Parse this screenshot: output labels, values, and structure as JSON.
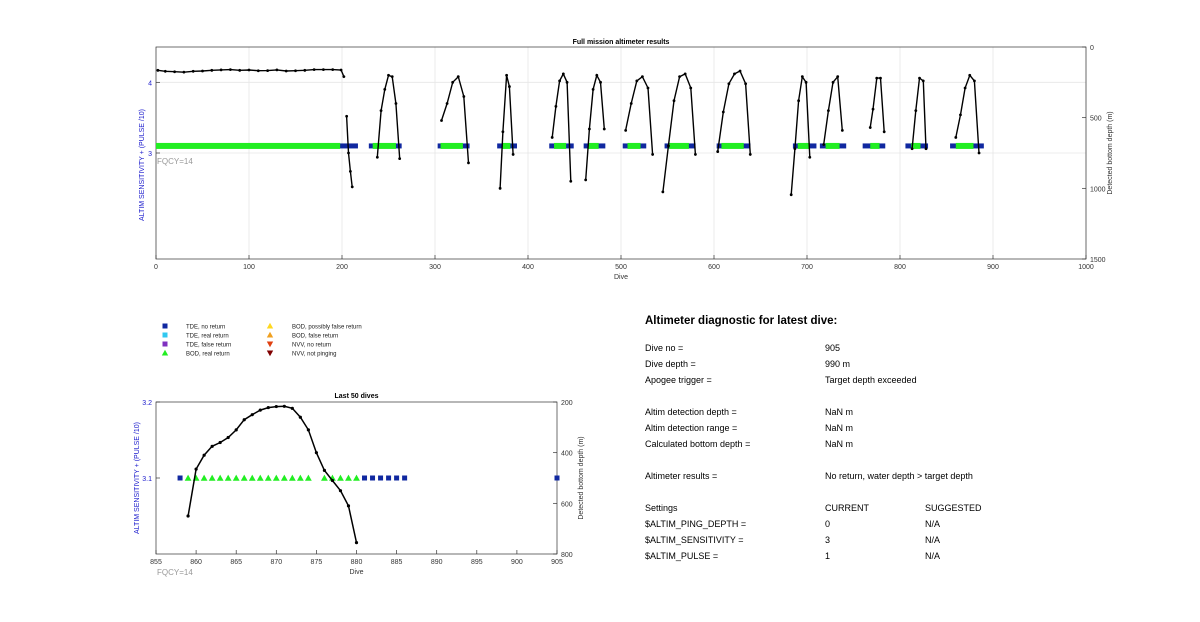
{
  "chart_data": [
    {
      "type": "line",
      "title": "Full mission altimeter results",
      "xlabel": "Dive",
      "ylabel": "ALTIM SENSITIVITY + (PULSE /10)",
      "y2label": "Detected bottom depth (m)",
      "xlim": [
        0,
        1000
      ],
      "ylim": [
        1.5,
        4.5
      ],
      "y2lim": [
        0,
        1500
      ],
      "y2_reversed": true,
      "xticks": [
        "0",
        "100",
        "200",
        "300",
        "400",
        "500",
        "600",
        "700",
        "800",
        "900",
        "1000"
      ],
      "yticks": [
        "3",
        "4"
      ],
      "y2ticks": [
        "0",
        "500",
        "1000",
        "1500"
      ],
      "annotation": "FQCY=14",
      "grid": true,
      "series": [
        {
          "kind": "depth-line",
          "color": "#000000",
          "segments": [
            {
              "x": [
                2,
                10,
                20,
                30,
                40,
                50,
                60,
                70,
                80,
                90,
                100,
                110,
                120,
                130,
                140,
                150,
                160,
                170,
                180,
                190,
                199,
                202
              ],
              "y": [
                165,
                172,
                175,
                178,
                172,
                170,
                165,
                162,
                160,
                165,
                163,
                168,
                167,
                162,
                170,
                168,
                165,
                160,
                160,
                160,
                163,
                210
              ]
            },
            {
              "x": [
                205,
                207,
                209,
                211
              ],
              "y": [
                490,
                750,
                880,
                990
              ]
            },
            {
              "x": [
                238,
                242,
                246,
                250,
                254,
                258,
                262
              ],
              "y": [
                780,
                450,
                300,
                200,
                210,
                400,
                790
              ]
            },
            {
              "x": [
                307,
                313,
                319,
                325,
                331,
                336
              ],
              "y": [
                520,
                400,
                250,
                210,
                350,
                820
              ]
            },
            {
              "x": [
                370,
                373,
                377,
                380,
                384
              ],
              "y": [
                1000,
                600,
                200,
                280,
                760
              ]
            },
            {
              "x": [
                426,
                430,
                434,
                438,
                442,
                446
              ],
              "y": [
                640,
                420,
                240,
                190,
                250,
                950
              ]
            },
            {
              "x": [
                462,
                466,
                470,
                474,
                478,
                482
              ],
              "y": [
                940,
                580,
                300,
                200,
                250,
                580
              ]
            },
            {
              "x": [
                505,
                511,
                517,
                523,
                529,
                534
              ],
              "y": [
                590,
                400,
                240,
                210,
                290,
                760
              ]
            },
            {
              "x": [
                545,
                551,
                557,
                563,
                569,
                575,
                580
              ],
              "y": [
                1025,
                700,
                380,
                210,
                190,
                290,
                760
              ]
            },
            {
              "x": [
                604,
                610,
                616,
                622,
                628,
                634,
                639
              ],
              "y": [
                740,
                460,
                260,
                190,
                170,
                260,
                760
              ]
            },
            {
              "x": [
                683,
                687,
                691,
                695,
                699,
                703
              ],
              "y": [
                1045,
                720,
                380,
                210,
                250,
                780
              ]
            },
            {
              "x": [
                718,
                723,
                728,
                733,
                738
              ],
              "y": [
                690,
                450,
                250,
                210,
                590
              ]
            },
            {
              "x": [
                768,
                771,
                775,
                779,
                783
              ],
              "y": [
                570,
                440,
                220,
                220,
                600
              ]
            },
            {
              "x": [
                813,
                817,
                821,
                825,
                828
              ],
              "y": [
                720,
                450,
                220,
                240,
                720
              ]
            },
            {
              "x": [
                860,
                865,
                870,
                875,
                880,
                885
              ],
              "y": [
                640,
                480,
                290,
                200,
                240,
                750
              ]
            }
          ]
        },
        {
          "kind": "bod-real-return-runs",
          "color": "#22ee22",
          "y": 3.1,
          "runs": [
            [
              0,
              198
            ],
            [
              233,
              258
            ],
            [
              306,
              330
            ],
            [
              372,
              381
            ],
            [
              428,
              441
            ],
            [
              465,
              476
            ],
            [
              507,
              521
            ],
            [
              552,
              573
            ],
            [
              608,
              632
            ],
            [
              690,
              703
            ],
            [
              720,
              735
            ],
            [
              768,
              778
            ],
            [
              812,
              822
            ],
            [
              860,
              879
            ]
          ]
        },
        {
          "kind": "tde-no-return-runs",
          "color": "#1028a0",
          "y": 3.1,
          "runs": [
            [
              200,
              215
            ],
            [
              231,
              262
            ],
            [
              305,
              335
            ],
            [
              369,
              386
            ],
            [
              425,
              447
            ],
            [
              462,
              481
            ],
            [
              504,
              525
            ],
            [
              549,
              578
            ],
            [
              605,
              637
            ],
            [
              687,
              708
            ],
            [
              716,
              740
            ],
            [
              762,
              782
            ],
            [
              808,
              828
            ],
            [
              856,
              888
            ]
          ]
        }
      ]
    },
    {
      "type": "scatter",
      "title": "Last 50 dives",
      "xlabel": "Dive",
      "ylabel": "ALTIM SENSITIVITY + (PULSE /10)",
      "y2label": "Detected bottom depth (m)",
      "xlim": [
        855,
        905
      ],
      "ylim": [
        3.0,
        3.2
      ],
      "y2lim": [
        200,
        800
      ],
      "y2_reversed": true,
      "xticks": [
        "855",
        "860",
        "865",
        "870",
        "875",
        "880",
        "885",
        "890",
        "895",
        "900",
        "905"
      ],
      "yticks": [
        "3.1",
        "3.2"
      ],
      "y2ticks": [
        "200",
        "400",
        "600",
        "800"
      ],
      "annotation": "FQCY=14",
      "depth_line": {
        "x": [
          859,
          860,
          861,
          862,
          863,
          864,
          865,
          866,
          867,
          868,
          869,
          870,
          871,
          872,
          873,
          874,
          875,
          876,
          877,
          878,
          879,
          880
        ],
        "y": [
          650,
          465,
          410,
          375,
          360,
          340,
          310,
          270,
          250,
          232,
          222,
          218,
          217,
          225,
          260,
          310,
          400,
          470,
          510,
          550,
          610,
          755
        ]
      },
      "bod_real_return": {
        "x": [
          859,
          860,
          861,
          862,
          863,
          864,
          865,
          866,
          867,
          868,
          869,
          870,
          871,
          872,
          873,
          874,
          876,
          877,
          878,
          879,
          880
        ],
        "y": 3.1
      },
      "tde_no_return": {
        "x": [
          858,
          881,
          882,
          883,
          884,
          885,
          886,
          905
        ],
        "y": 3.1
      }
    }
  ],
  "legend": {
    "left": [
      {
        "label": "TDE, no return",
        "marker": "square",
        "color": "#1028a0"
      },
      {
        "label": "TDE, real return",
        "marker": "square",
        "color": "#30c8f0"
      },
      {
        "label": "TDE, false return",
        "marker": "square",
        "color": "#8030c0"
      },
      {
        "label": "BOD, real return",
        "marker": "triangle-up",
        "color": "#22ee22"
      }
    ],
    "right": [
      {
        "label": "BOD, possibly false return",
        "marker": "triangle-up",
        "color": "#ffd820"
      },
      {
        "label": "BOD, false return",
        "marker": "triangle-up",
        "color": "#f0a020"
      },
      {
        "label": "NVV, no return",
        "marker": "triangle-down",
        "color": "#e04010"
      },
      {
        "label": "NVV, not pinging",
        "marker": "triangle-down",
        "color": "#800000"
      }
    ]
  },
  "diagnostic": {
    "title": "Altimeter diagnostic for latest dive:",
    "dive_no_label": "Dive no =",
    "dive_no_value": "905",
    "dive_depth_label": "Dive depth =",
    "dive_depth_value": "990 m",
    "apogee_label": "Apogee trigger =",
    "apogee_value": "Target depth exceeded",
    "detect_depth_label": "Altim detection depth =",
    "detect_depth_value": "NaN m",
    "detect_range_label": "Altim detection range =",
    "detect_range_value": "NaN m",
    "calc_bottom_label": "Calculated bottom depth =",
    "calc_bottom_value": "NaN m",
    "results_label": "Altimeter results =",
    "results_value": "No return, water depth > target depth",
    "settings_header": "Settings",
    "current_header": "CURRENT",
    "suggested_header": "SUGGESTED",
    "ping_depth_label": "$ALTIM_PING_DEPTH =",
    "ping_depth_current": "0",
    "ping_depth_suggested": "N/A",
    "sensitivity_label": "$ALTIM_SENSITIVITY =",
    "sensitivity_current": "3",
    "sensitivity_suggested": "N/A",
    "pulse_label": "$ALTIM_PULSE =",
    "pulse_current": "1",
    "pulse_suggested": "N/A"
  }
}
